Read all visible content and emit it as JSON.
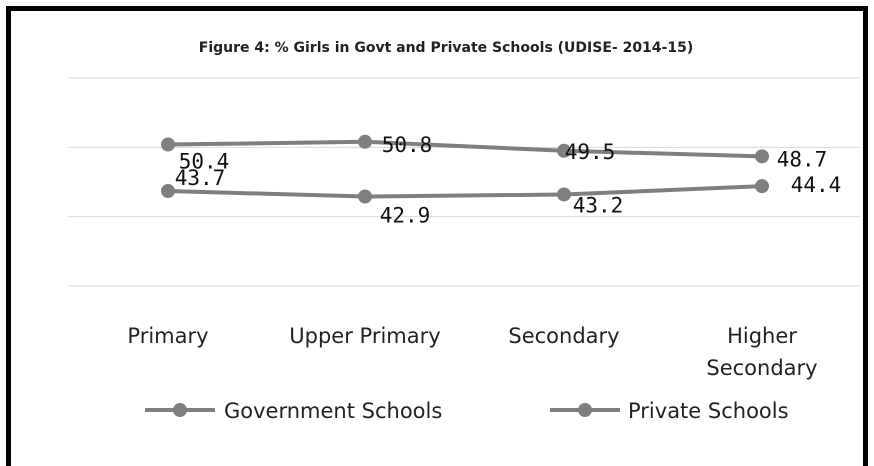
{
  "chart_data": {
    "type": "line",
    "title": "Figure 4: % Girls in Govt and Private Schools (UDISE- 2014-15)",
    "categories": [
      "Primary",
      "Upper Primary",
      "Secondary",
      "Higher Secondary"
    ],
    "series": [
      {
        "name": "Government Schools",
        "values": [
          50.4,
          50.8,
          49.5,
          48.7
        ]
      },
      {
        "name": "Private Schools",
        "values": [
          43.7,
          42.9,
          43.2,
          44.4
        ]
      }
    ],
    "ylim": [
      30,
      60
    ],
    "grid": true,
    "legend_position": "bottom",
    "line_color": "#7f7f7f"
  }
}
